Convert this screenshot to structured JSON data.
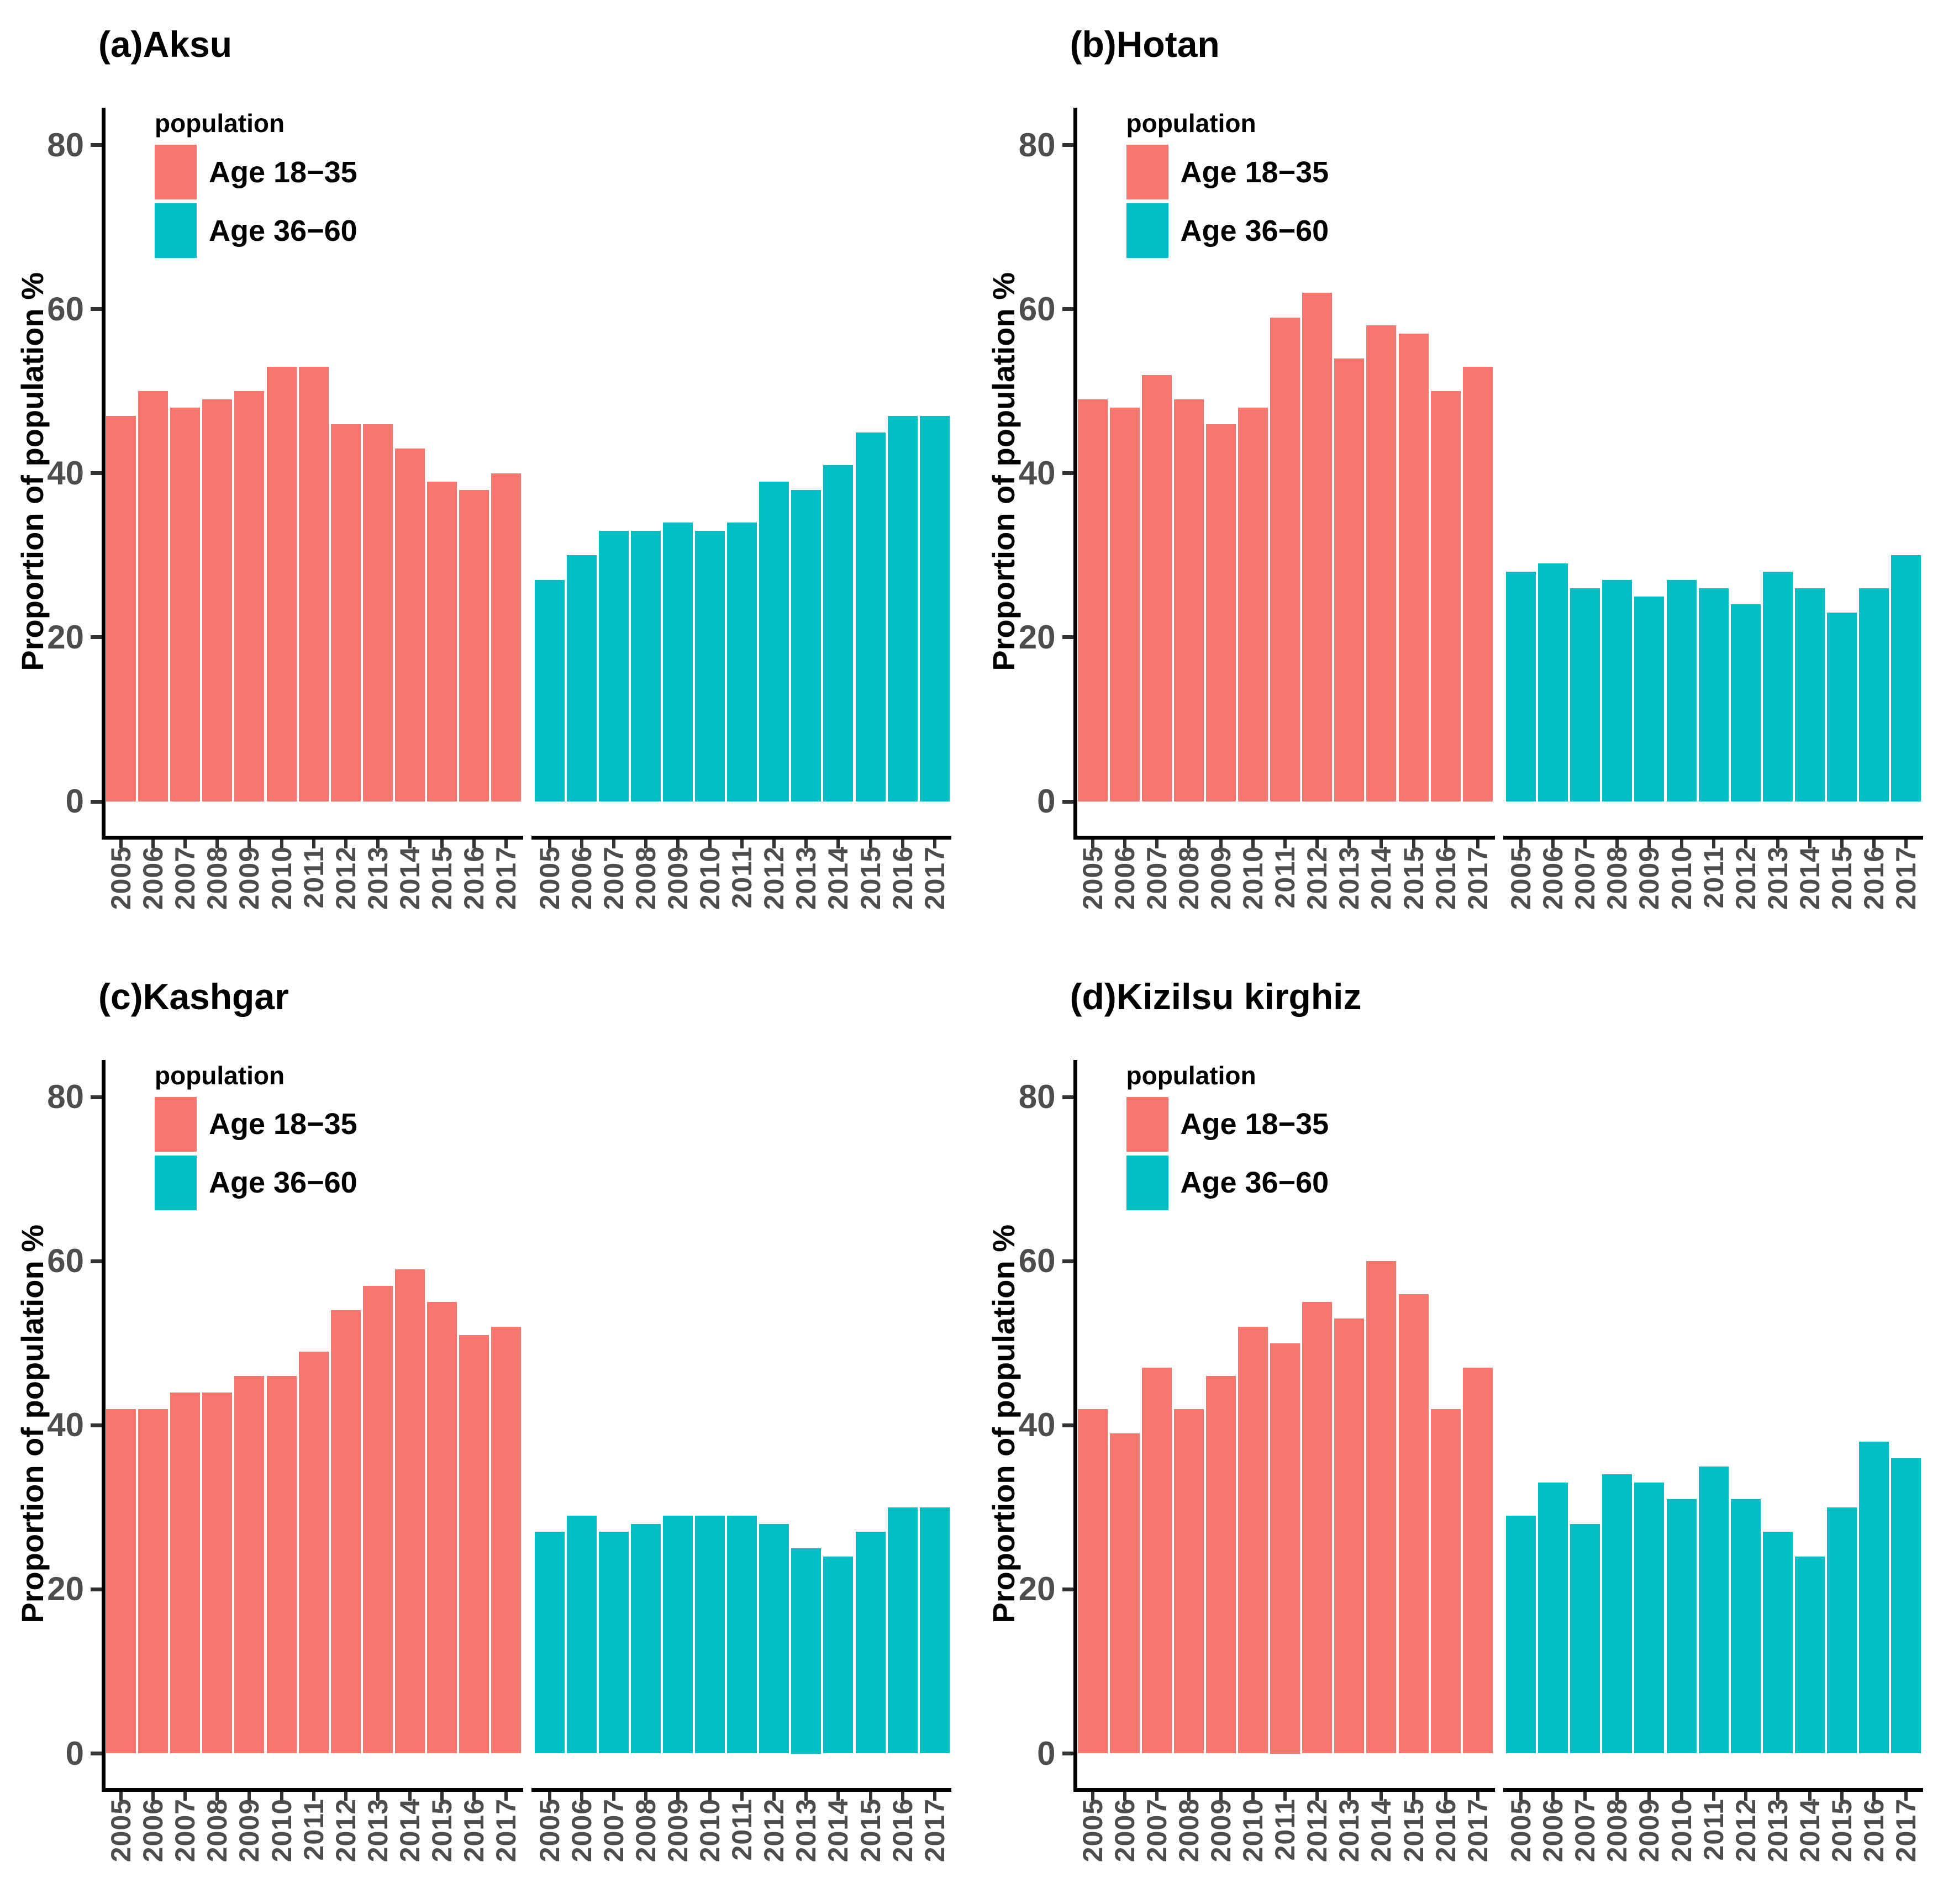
{
  "figure": {
    "y_axis_title": "Proportion of population %",
    "y_ticks": [
      0,
      20,
      40,
      60,
      80
    ],
    "years": [
      "2005",
      "2006",
      "2007",
      "2008",
      "2009",
      "2010",
      "2011",
      "2012",
      "2013",
      "2014",
      "2015",
      "2016",
      "2017"
    ],
    "legend": {
      "title": "population",
      "items": [
        {
          "label": "Age 18−35",
          "color": "#F8766D"
        },
        {
          "label": "Age 36−60",
          "color": "#00BFC4"
        }
      ]
    },
    "colors": {
      "age_18_35": "#F8766D",
      "age_36_60": "#00BFC4",
      "axis_line": "#000000",
      "tick_text": "#4d4d4d"
    }
  },
  "chart_data": [
    {
      "type": "bar",
      "title": "(a)Aksu",
      "categories": [
        "2005",
        "2006",
        "2007",
        "2008",
        "2009",
        "2010",
        "2011",
        "2012",
        "2013",
        "2014",
        "2015",
        "2016",
        "2017"
      ],
      "series": [
        {
          "name": "Age 18−35",
          "color": "#F8766D",
          "values": [
            47,
            50,
            48,
            49,
            50,
            53,
            53,
            46,
            46,
            43,
            39,
            38,
            40
          ]
        },
        {
          "name": "Age 36−60",
          "color": "#00BFC4",
          "values": [
            27,
            30,
            33,
            33,
            34,
            33,
            34,
            39,
            38,
            41,
            45,
            47,
            47
          ]
        }
      ],
      "xlabel": "",
      "ylabel": "Proportion of population %",
      "ylim": [
        0,
        80
      ],
      "grid": false,
      "legend_position": "top-left-inside"
    },
    {
      "type": "bar",
      "title": "(b)Hotan",
      "categories": [
        "2005",
        "2006",
        "2007",
        "2008",
        "2009",
        "2010",
        "2011",
        "2012",
        "2013",
        "2014",
        "2015",
        "2016",
        "2017"
      ],
      "series": [
        {
          "name": "Age 18−35",
          "color": "#F8766D",
          "values": [
            49,
            48,
            52,
            49,
            46,
            48,
            59,
            62,
            54,
            58,
            57,
            50,
            53
          ]
        },
        {
          "name": "Age 36−60",
          "color": "#00BFC4",
          "values": [
            28,
            29,
            26,
            27,
            25,
            27,
            26,
            24,
            28,
            26,
            23,
            26,
            30
          ]
        }
      ],
      "xlabel": "",
      "ylabel": "Proportion of population %",
      "ylim": [
        0,
        80
      ],
      "grid": false,
      "legend_position": "top-left-inside"
    },
    {
      "type": "bar",
      "title": "(c)Kashgar",
      "categories": [
        "2005",
        "2006",
        "2007",
        "2008",
        "2009",
        "2010",
        "2011",
        "2012",
        "2013",
        "2014",
        "2015",
        "2016",
        "2017"
      ],
      "series": [
        {
          "name": "Age 18−35",
          "color": "#F8766D",
          "values": [
            42,
            42,
            44,
            44,
            46,
            46,
            49,
            54,
            57,
            59,
            55,
            51,
            52
          ]
        },
        {
          "name": "Age 36−60",
          "color": "#00BFC4",
          "values": [
            27,
            29,
            27,
            28,
            29,
            29,
            29,
            28,
            25,
            24,
            27,
            30,
            30
          ]
        }
      ],
      "xlabel": "",
      "ylabel": "Proportion of population %",
      "ylim": [
        0,
        80
      ],
      "grid": false,
      "legend_position": "top-left-inside"
    },
    {
      "type": "bar",
      "title": "(d)Kizilsu kirghiz",
      "categories": [
        "2005",
        "2006",
        "2007",
        "2008",
        "2009",
        "2010",
        "2011",
        "2012",
        "2013",
        "2014",
        "2015",
        "2016",
        "2017"
      ],
      "series": [
        {
          "name": "Age 18−35",
          "color": "#F8766D",
          "values": [
            42,
            39,
            47,
            42,
            46,
            52,
            50,
            55,
            53,
            60,
            56,
            42,
            47
          ]
        },
        {
          "name": "Age 36−60",
          "color": "#00BFC4",
          "values": [
            29,
            33,
            28,
            34,
            33,
            31,
            35,
            31,
            27,
            24,
            30,
            38,
            36
          ]
        }
      ],
      "xlabel": "",
      "ylabel": "Proportion of population %",
      "ylim": [
        0,
        80
      ],
      "grid": false,
      "legend_position": "top-left-inside"
    }
  ]
}
